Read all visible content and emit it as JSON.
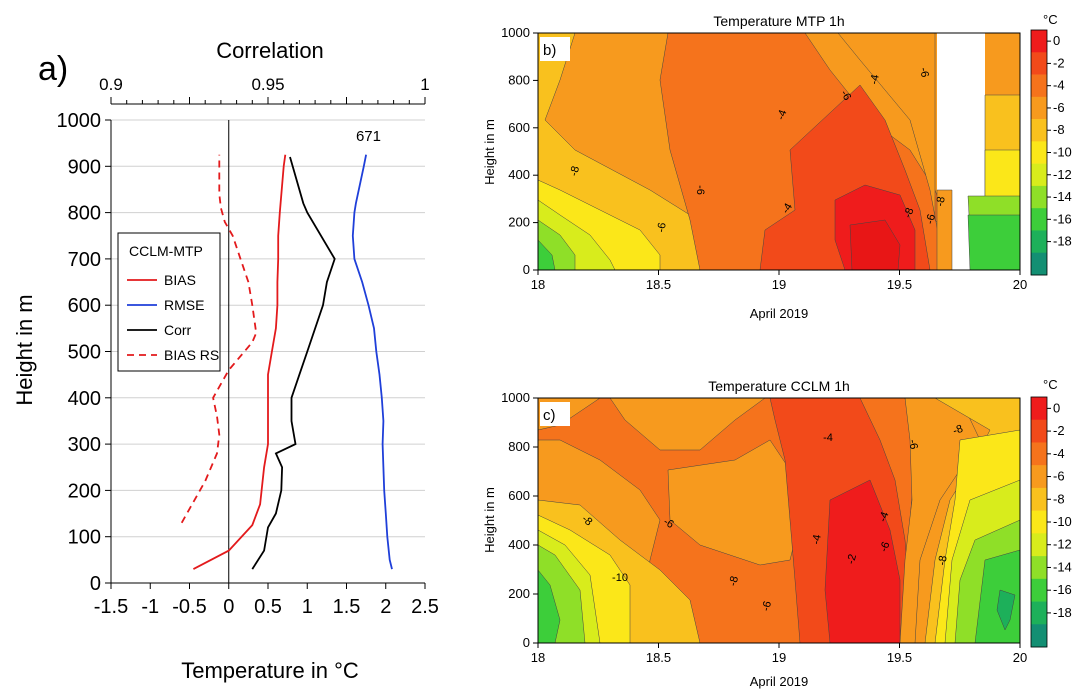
{
  "chart_data": [
    {
      "panel": "a)",
      "type": "line",
      "xlabel": "Temperature in °C",
      "x_ticks": [
        -1.5,
        -1,
        -0.5,
        0,
        0.5,
        1,
        1.5,
        2,
        2.5
      ],
      "xlim": [
        -1.5,
        2.5
      ],
      "top_axis_label": "Correlation",
      "top_ticks": [
        0.9,
        0.95,
        1
      ],
      "top_lim": [
        0.9,
        1
      ],
      "ylabel": "Height in m",
      "y_ticks": [
        0,
        100,
        200,
        300,
        400,
        500,
        600,
        700,
        800,
        900,
        1000
      ],
      "ylim": [
        0,
        1000
      ],
      "grid": "horizontal",
      "legend": {
        "title": "CCLM-MTP",
        "placement": "left"
      },
      "annotation": {
        "text": "671",
        "x": 1.78,
        "y": 950
      },
      "series": [
        {
          "name": "BIAS",
          "color": "#e31a1c",
          "dash": false,
          "axis": "bottom",
          "points": [
            [
              -0.45,
              30
            ],
            [
              0,
              70
            ],
            [
              0.3,
              125
            ],
            [
              0.4,
              170
            ],
            [
              0.45,
              250
            ],
            [
              0.5,
              300
            ],
            [
              0.5,
              350
            ],
            [
              0.5,
              450
            ],
            [
              0.55,
              500
            ],
            [
              0.6,
              550
            ],
            [
              0.62,
              600
            ],
            [
              0.62,
              650
            ],
            [
              0.63,
              700
            ],
            [
              0.63,
              750
            ],
            [
              0.65,
              800
            ],
            [
              0.7,
              900
            ],
            [
              0.72,
              925
            ]
          ]
        },
        {
          "name": "RMSE",
          "color": "#1f3fd9",
          "dash": false,
          "axis": "bottom",
          "points": [
            [
              2.08,
              30
            ],
            [
              2.05,
              50
            ],
            [
              2.02,
              100
            ],
            [
              2.0,
              150
            ],
            [
              1.98,
              200
            ],
            [
              1.97,
              250
            ],
            [
              1.96,
              300
            ],
            [
              1.97,
              350
            ],
            [
              1.95,
              400
            ],
            [
              1.92,
              450
            ],
            [
              1.88,
              500
            ],
            [
              1.85,
              550
            ],
            [
              1.78,
              600
            ],
            [
              1.7,
              650
            ],
            [
              1.6,
              700
            ],
            [
              1.58,
              750
            ],
            [
              1.6,
              800
            ],
            [
              1.62,
              820
            ],
            [
              1.72,
              900
            ],
            [
              1.75,
              925
            ]
          ]
        },
        {
          "name": "Corr",
          "color": "#000000",
          "dash": false,
          "axis": "bottom",
          "points": [
            [
              0.3,
              30
            ],
            [
              0.45,
              70
            ],
            [
              0.5,
              120
            ],
            [
              0.6,
              150
            ],
            [
              0.67,
              200
            ],
            [
              0.68,
              250
            ],
            [
              0.6,
              280
            ],
            [
              0.85,
              300
            ],
            [
              0.8,
              350
            ],
            [
              0.8,
              400
            ],
            [
              0.9,
              450
            ],
            [
              1.0,
              500
            ],
            [
              1.2,
              600
            ],
            [
              1.25,
              650
            ],
            [
              1.35,
              700
            ],
            [
              1.0,
              800
            ],
            [
              0.95,
              820
            ],
            [
              0.78,
              920
            ]
          ]
        },
        {
          "name": "BIAS RS",
          "color": "#e31a1c",
          "dash": true,
          "axis": "bottom",
          "points": [
            [
              -0.6,
              130
            ],
            [
              -0.5,
              160
            ],
            [
              -0.3,
              220
            ],
            [
              -0.15,
              280
            ],
            [
              -0.12,
              320
            ],
            [
              -0.15,
              360
            ],
            [
              -0.2,
              400
            ],
            [
              0,
              460
            ],
            [
              0.3,
              520
            ],
            [
              0.35,
              540
            ],
            [
              0.3,
              600
            ],
            [
              0.25,
              650
            ],
            [
              0.15,
              700
            ],
            [
              0.05,
              750
            ],
            [
              -0.05,
              780
            ],
            [
              -0.1,
              810
            ],
            [
              -0.12,
              840
            ],
            [
              -0.12,
              925
            ]
          ]
        }
      ]
    },
    {
      "panel": "b)",
      "type": "heatmap",
      "title": "Temperature MTP 1h",
      "xlabel": "April 2019",
      "x_ticks": [
        18,
        18.5,
        19,
        19.5,
        20
      ],
      "xlim": [
        18,
        20
      ],
      "ylabel": "Height in m",
      "y_ticks": [
        0,
        200,
        400,
        600,
        800,
        1000
      ],
      "ylim": [
        0,
        1000
      ],
      "colorbar_unit": "°C",
      "colorbar_ticks": [
        0,
        -2,
        -4,
        -6,
        -8,
        -10,
        -12,
        -14,
        -16,
        -18
      ],
      "contour_labels": [
        "-8",
        "-6",
        "-4",
        "-6",
        "-4",
        "-6",
        "-8",
        "-4",
        "-6",
        "-8",
        "-6"
      ]
    },
    {
      "panel": "c)",
      "type": "heatmap",
      "title": "Temperature CCLM 1h",
      "xlabel": "April 2019",
      "x_ticks": [
        18,
        18.5,
        19,
        19.5,
        20
      ],
      "xlim": [
        18,
        20
      ],
      "ylabel": "Height in m",
      "y_ticks": [
        0,
        200,
        400,
        600,
        800,
        1000
      ],
      "ylim": [
        0,
        1000
      ],
      "colorbar_unit": "°C",
      "colorbar_ticks": [
        0,
        -2,
        -4,
        -6,
        -8,
        -10,
        -12,
        -14,
        -16,
        -18
      ],
      "contour_labels": [
        "-4",
        "-6",
        "-8",
        "-6",
        "-8",
        "-10",
        "-4",
        "-2",
        "-4",
        "-6",
        "-8",
        "-8",
        "-6"
      ]
    }
  ],
  "colors": {
    "levels": [
      "#ef1c1c",
      "#f24a1a",
      "#f5731c",
      "#f79a1e",
      "#f9c11e",
      "#fbe719",
      "#d8ec1c",
      "#8fdf28",
      "#3dce3a",
      "#1db05a",
      "#138f73"
    ],
    "level_edges": [
      0,
      -2,
      -4,
      -6,
      -8,
      -10,
      -12,
      -14,
      -16,
      -18
    ]
  }
}
